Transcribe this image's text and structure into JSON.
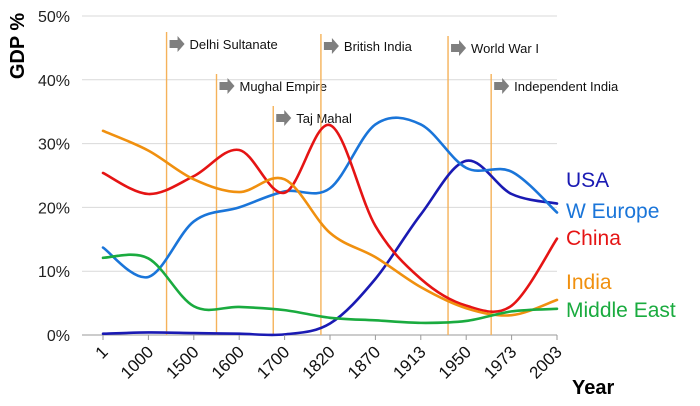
{
  "chart_data": {
    "type": "line",
    "ylabel": "GDP %",
    "xlabel": "Year",
    "y_unit": "%",
    "ylim": [
      0,
      50
    ],
    "y_ticks": [
      0,
      10,
      20,
      30,
      40,
      50
    ],
    "categories": [
      "1",
      "1000",
      "1500",
      "1600",
      "1700",
      "1820",
      "1870",
      "1913",
      "1950",
      "1973",
      "2003"
    ],
    "grid": "horizontal",
    "legend": "labels at right end of lines",
    "events": [
      {
        "label": "Delhi Sultanate",
        "x": 1.4
      },
      {
        "label": "Mughal Empire",
        "x": 2.5
      },
      {
        "label": "Taj Mahal",
        "x": 3.75
      },
      {
        "label": "British India",
        "x": 4.8
      },
      {
        "label": "World War I",
        "x": 7.6
      },
      {
        "label": "Independent India",
        "x": 8.55
      }
    ],
    "series": [
      {
        "name": "USA",
        "color": "#1a1ab3",
        "values": [
          0.2,
          0.4,
          0.3,
          0.2,
          0.1,
          1.8,
          8.8,
          18.9,
          27.3,
          22.1,
          20.6
        ]
      },
      {
        "name": "W Europe",
        "color": "#1a75d9",
        "values": [
          13.7,
          9.1,
          17.8,
          20.0,
          22.5,
          23.0,
          33.0,
          33.0,
          26.2,
          25.6,
          19.2
        ]
      },
      {
        "name": "China",
        "color": "#e51414",
        "values": [
          25.4,
          22.1,
          24.9,
          29.0,
          22.3,
          32.9,
          17.1,
          8.8,
          4.6,
          4.6,
          15.1
        ]
      },
      {
        "name": "India",
        "color": "#f0900f",
        "values": [
          32.0,
          28.9,
          24.4,
          22.4,
          24.4,
          16.0,
          12.2,
          7.5,
          4.2,
          3.1,
          5.5
        ]
      },
      {
        "name": "Middle East",
        "color": "#1aab3f",
        "values": [
          12.1,
          12.0,
          4.5,
          4.4,
          3.9,
          2.7,
          2.3,
          1.9,
          2.2,
          3.7,
          4.1
        ]
      }
    ]
  }
}
